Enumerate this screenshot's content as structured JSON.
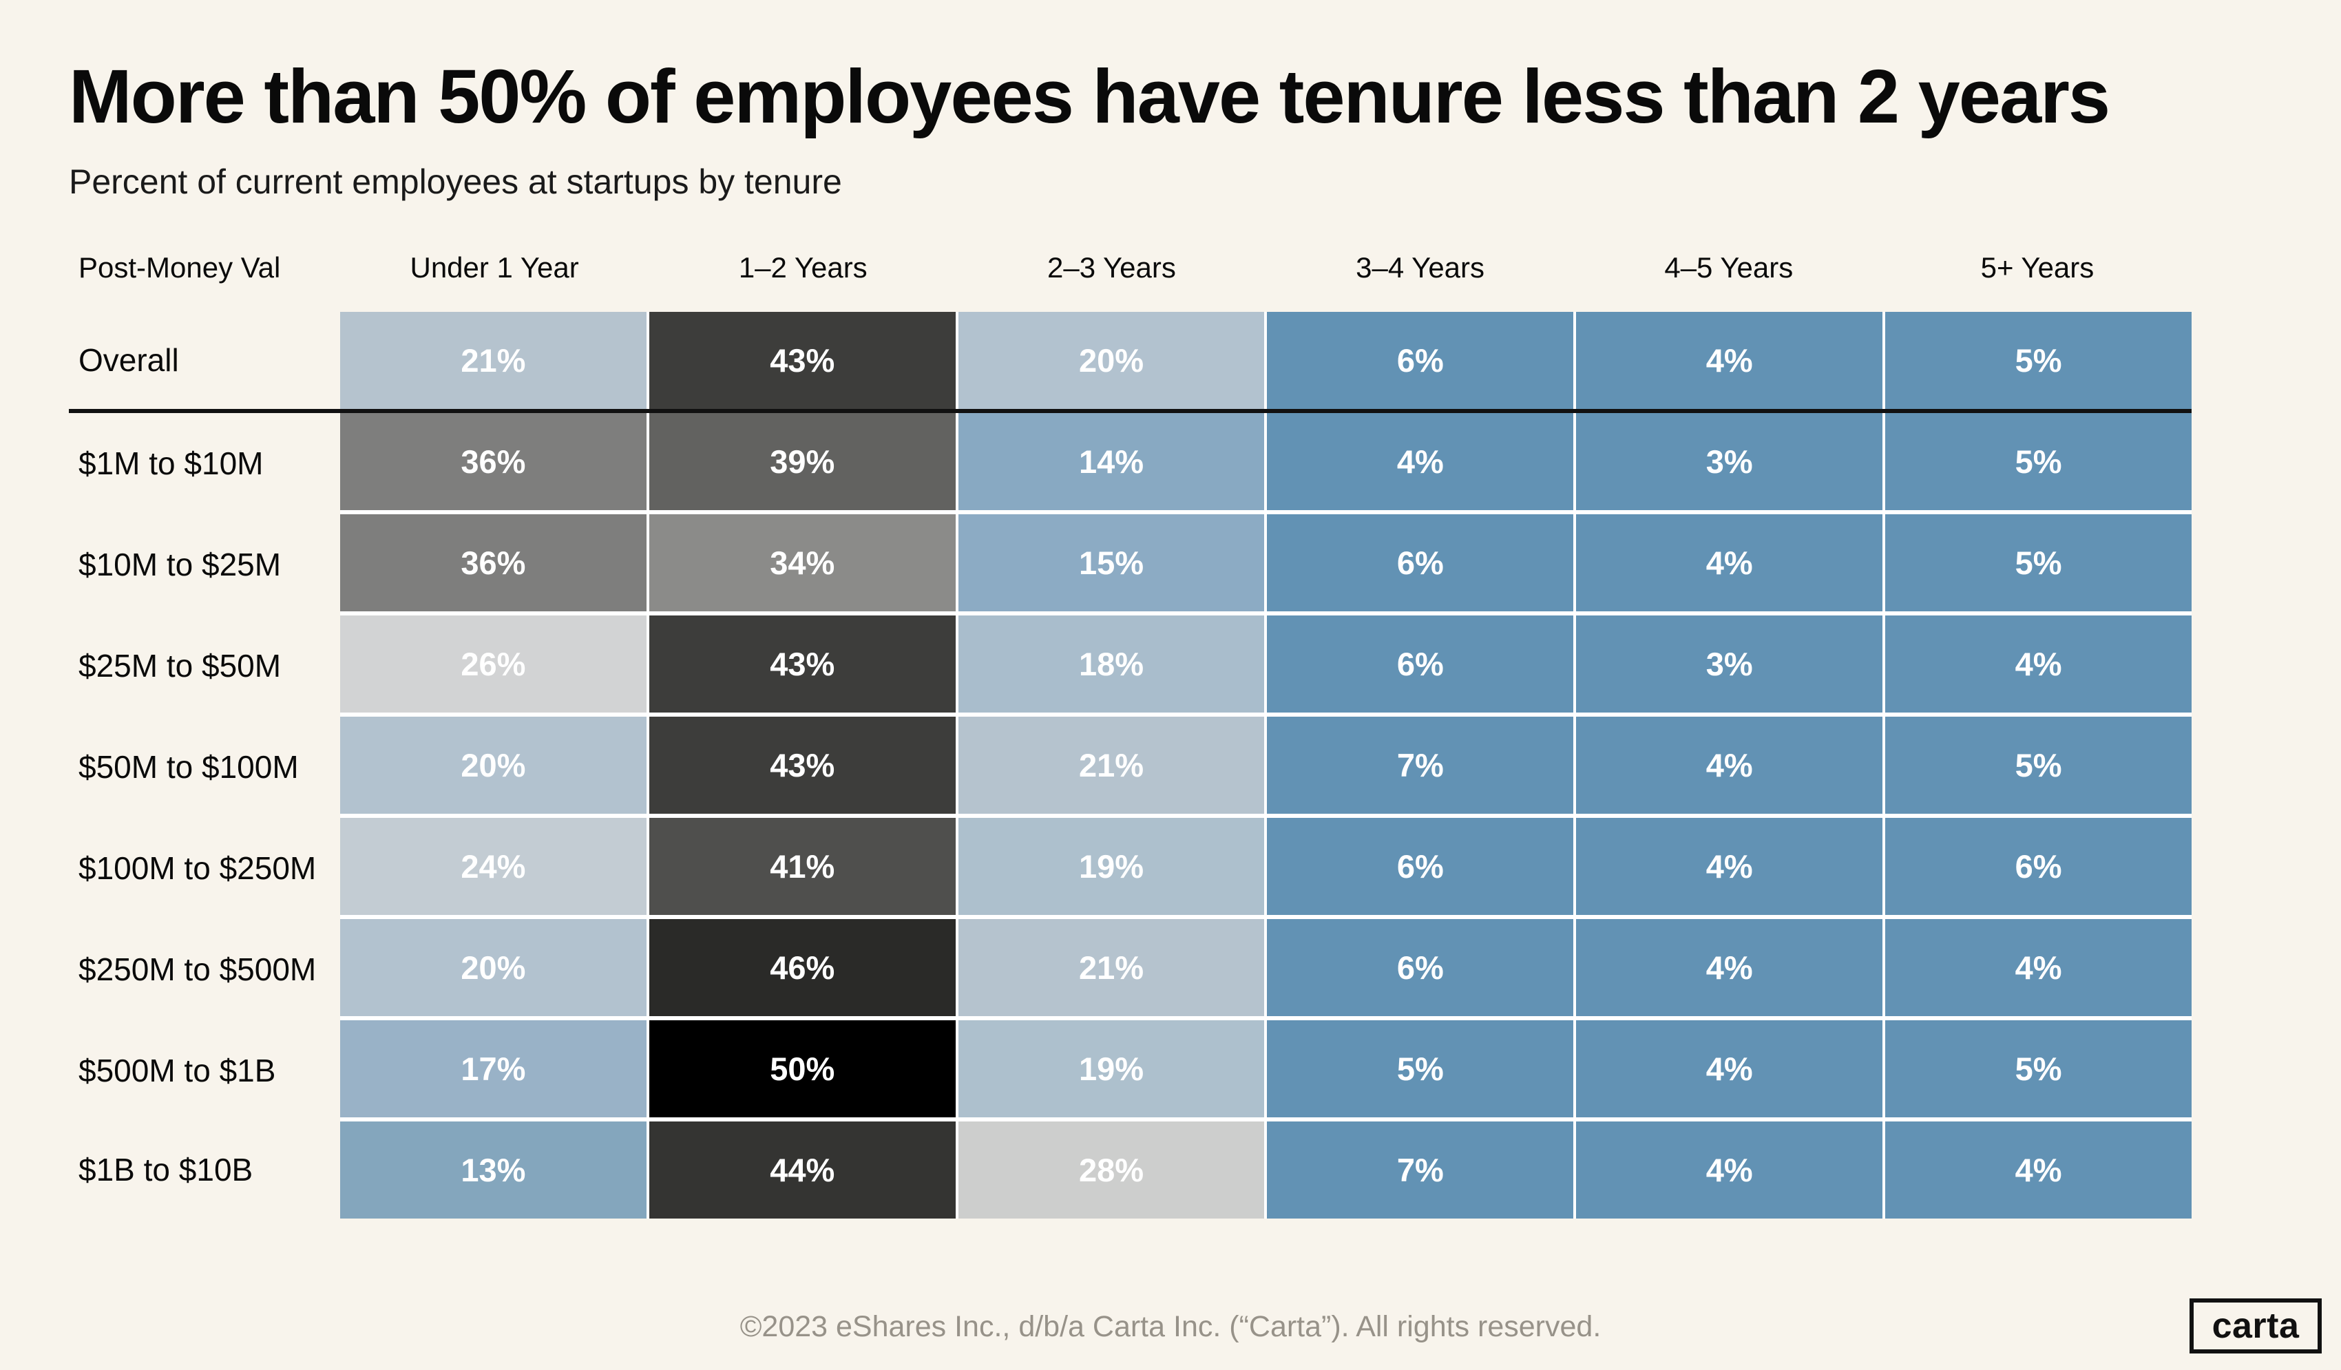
{
  "page": {
    "title": "More than 50% of employees have tenure less than 2 years",
    "subtitle": "Percent of current employees at startups by tenure",
    "footer": "©2023 eShares Inc., d/b/a Carta Inc. (“Carta”). All rights reserved.",
    "logo_text": "carta"
  },
  "colors": {
    "background": "#f8f4ec",
    "cell_text": "#ffffff",
    "cell_gap": "#ffffff",
    "overall_divider": "#111111",
    "footer_text": "#979289",
    "logo_border": "#111111",
    "colormap_low_blue": "#6292b4",
    "colormap_mid_gray": "#d2d3d4",
    "colormap_high_black": "#000000"
  },
  "chart_data": {
    "type": "heatmap",
    "title": "More than 50% of employees have tenure less than 2 years",
    "subtitle": "Percent of current employees at startups by tenure",
    "row_header": "Post-Money Val",
    "columns": [
      "Under 1 Year",
      "1–2 Years",
      "2–3 Years",
      "3–4 Years",
      "4–5 Years",
      "5+ Years"
    ],
    "value_suffix": "%",
    "legend": "none",
    "colormap_note": "diverging: steel blue at low % → light gray ~26% → black at 50%",
    "rows": [
      {
        "label": "Overall",
        "divider_after": true,
        "values": [
          21,
          43,
          20,
          6,
          4,
          5
        ],
        "colors": [
          "#b5c3ce",
          "#3d3d3b",
          "#b2c2cf",
          "#6292b4",
          "#6292b4",
          "#6292b4"
        ]
      },
      {
        "label": "$1M to $10M",
        "values": [
          36,
          39,
          14,
          4,
          3,
          5
        ],
        "colors": [
          "#7e7e7d",
          "#626260",
          "#88a9c2",
          "#6292b4",
          "#6292b4",
          "#6292b4"
        ]
      },
      {
        "label": "$10M to $25M",
        "values": [
          36,
          34,
          15,
          6,
          4,
          5
        ],
        "colors": [
          "#7e7e7d",
          "#8b8b89",
          "#8cabc4",
          "#6292b4",
          "#6292b4",
          "#6292b4"
        ]
      },
      {
        "label": "$25M to $50M",
        "values": [
          26,
          43,
          18,
          6,
          3,
          4
        ],
        "colors": [
          "#d2d3d4",
          "#3d3d3b",
          "#a9bdcc",
          "#6292b4",
          "#6292b4",
          "#6292b4"
        ]
      },
      {
        "label": "$50M to $100M",
        "values": [
          20,
          43,
          21,
          7,
          4,
          5
        ],
        "colors": [
          "#b2c2cf",
          "#3d3d3b",
          "#b5c3ce",
          "#6292b4",
          "#6292b4",
          "#6292b4"
        ]
      },
      {
        "label": "$100M to $250M",
        "values": [
          24,
          41,
          19,
          6,
          4,
          6
        ],
        "colors": [
          "#c3ccd3",
          "#4f4f4d",
          "#adc0cd",
          "#6292b4",
          "#6292b4",
          "#6292b4"
        ]
      },
      {
        "label": "$250M to $500M",
        "values": [
          20,
          46,
          21,
          6,
          4,
          4
        ],
        "colors": [
          "#b2c2cf",
          "#2a2a28",
          "#b5c3ce",
          "#6292b4",
          "#6292b4",
          "#6292b4"
        ]
      },
      {
        "label": "$500M to $1B",
        "values": [
          17,
          50,
          19,
          5,
          4,
          5
        ],
        "colors": [
          "#99b2c7",
          "#000000",
          "#adc0cd",
          "#6292b4",
          "#6292b4",
          "#6292b4"
        ]
      },
      {
        "label": "$1B to $10B",
        "values": [
          13,
          44,
          28,
          7,
          4,
          4
        ],
        "colors": [
          "#84a6bd",
          "#343432",
          "#cdcecd",
          "#6292b4",
          "#6292b4",
          "#6292b4"
        ]
      }
    ]
  }
}
